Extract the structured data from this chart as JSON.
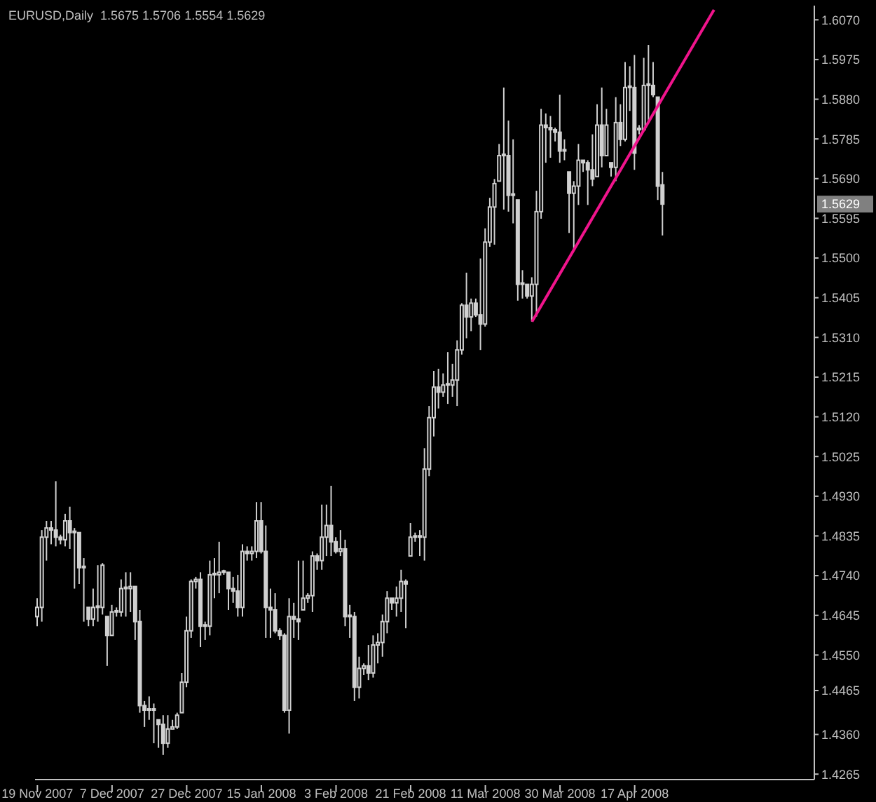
{
  "chart_data": {
    "type": "candlestick",
    "title": "EURUSD,Daily  1.5675 1.5706 1.5554 1.5629",
    "color": "#d0d0d0",
    "categories": [
      "19 Nov 2007",
      null,
      null,
      null,
      null,
      null,
      null,
      null,
      null,
      null,
      null,
      null,
      null,
      null,
      null,
      null,
      "7 Dec 2007",
      null,
      null,
      null,
      null,
      null,
      null,
      null,
      null,
      null,
      null,
      null,
      null,
      null,
      null,
      null,
      "27 Dec 2007",
      null,
      null,
      null,
      null,
      null,
      null,
      null,
      null,
      null,
      null,
      null,
      null,
      null,
      null,
      null,
      "15 Jan 2008",
      null,
      null,
      null,
      null,
      null,
      null,
      null,
      null,
      null,
      null,
      null,
      null,
      null,
      null,
      null,
      "3 Feb 2008",
      null,
      null,
      null,
      null,
      null,
      null,
      null,
      null,
      null,
      null,
      null,
      null,
      null,
      null,
      null,
      "21 Feb 2008",
      null,
      null,
      null,
      null,
      null,
      null,
      null,
      null,
      null,
      null,
      null,
      null,
      null,
      null,
      null,
      "11 Mar 2008",
      null,
      null,
      null,
      null,
      null,
      null,
      null,
      null,
      null,
      null,
      null,
      null,
      null,
      null,
      null,
      "30 Mar 2008",
      null,
      null,
      null,
      null,
      null,
      null,
      null,
      null,
      null,
      null,
      null,
      null,
      null,
      null,
      null,
      "17 Apr 2008",
      null,
      null,
      null,
      null,
      null,
      null,
      null,
      null,
      null,
      null,
      null,
      null,
      null,
      null,
      null,
      null,
      null,
      null,
      null,
      null,
      null,
      null,
      null,
      null,
      null,
      null,
      null,
      null,
      null,
      null,
      null,
      null,
      null,
      null,
      null,
      null,
      null,
      null
    ],
    "ohlc": [
      [
        1.4642,
        1.4686,
        1.4619,
        1.4664
      ],
      [
        1.4664,
        1.4849,
        1.463,
        1.4832
      ],
      [
        1.4832,
        1.4871,
        1.4776,
        1.4854
      ],
      [
        1.4854,
        1.4871,
        1.4815,
        1.4849
      ],
      [
        1.4849,
        1.4966,
        1.481,
        1.4832
      ],
      [
        1.4832,
        1.4838,
        1.4815,
        1.4826
      ],
      [
        1.4826,
        1.4888,
        1.481,
        1.4871
      ],
      [
        1.4871,
        1.4905,
        1.4804,
        1.4843
      ],
      [
        1.4843,
        1.4854,
        1.4709,
        1.4843
      ],
      [
        1.4843,
        1.4843,
        1.472,
        1.4759
      ],
      [
        1.4759,
        1.4782,
        1.463,
        1.4759
      ],
      [
        1.4664,
        1.4664,
        1.4619,
        1.4636
      ],
      [
        1.4636,
        1.4709,
        1.4619,
        1.4664
      ],
      [
        1.4664,
        1.4765,
        1.463,
        1.4664
      ],
      [
        1.4664,
        1.477,
        1.4647,
        1.4765
      ],
      [
        1.4642,
        1.4642,
        1.4524,
        1.4597
      ],
      [
        1.4597,
        1.467,
        1.4597,
        1.4653
      ],
      [
        1.4653,
        1.4664,
        1.4642,
        1.4653
      ],
      [
        1.4653,
        1.4731,
        1.4642,
        1.4709
      ],
      [
        1.4709,
        1.4748,
        1.4642,
        1.4709
      ],
      [
        1.4709,
        1.4748,
        1.4653,
        1.4714
      ],
      [
        1.4714,
        1.4714,
        1.4586,
        1.463
      ],
      [
        1.463,
        1.4658,
        1.4412,
        1.4429
      ],
      [
        1.4429,
        1.444,
        1.4378,
        1.4418
      ],
      [
        1.4418,
        1.4451,
        1.4395,
        1.4418
      ],
      [
        1.4418,
        1.4434,
        1.4339,
        1.4418
      ],
      [
        1.4395,
        1.4395,
        1.4328,
        1.4384
      ],
      [
        1.4384,
        1.4406,
        1.4311,
        1.4339
      ],
      [
        1.4339,
        1.4406,
        1.4328,
        1.4373
      ],
      [
        1.4373,
        1.4395,
        1.4373,
        1.4378
      ],
      [
        1.4378,
        1.4412,
        1.4373,
        1.4406
      ],
      [
        1.4412,
        1.4507,
        1.4412,
        1.4485
      ],
      [
        1.4485,
        1.4642,
        1.4473,
        1.4608
      ],
      [
        1.4608,
        1.4731,
        1.4591,
        1.4726
      ],
      [
        1.4726,
        1.4737,
        1.4709,
        1.4731
      ],
      [
        1.4731,
        1.4748,
        1.4569,
        1.4619
      ],
      [
        1.4619,
        1.463,
        1.4586,
        1.4619
      ],
      [
        1.4619,
        1.4776,
        1.4597,
        1.4742
      ],
      [
        1.4742,
        1.4782,
        1.4686,
        1.4742
      ],
      [
        1.4742,
        1.4821,
        1.4698,
        1.4748
      ],
      [
        1.4748,
        1.4754,
        1.4742,
        1.4748
      ],
      [
        1.4748,
        1.4748,
        1.4658,
        1.4709
      ],
      [
        1.4709,
        1.4737,
        1.4675,
        1.4703
      ],
      [
        1.4703,
        1.4742,
        1.4642,
        1.4664
      ],
      [
        1.4664,
        1.4815,
        1.4642,
        1.4798
      ],
      [
        1.4798,
        1.481,
        1.4776,
        1.4793
      ],
      [
        1.4793,
        1.481,
        1.4776,
        1.4798
      ],
      [
        1.4798,
        1.4916,
        1.4782,
        1.4871
      ],
      [
        1.4871,
        1.4916,
        1.4793,
        1.4798
      ],
      [
        1.4798,
        1.486,
        1.4591,
        1.4664
      ],
      [
        1.4664,
        1.4709,
        1.4591,
        1.4658
      ],
      [
        1.4658,
        1.4698,
        1.4602,
        1.4608
      ],
      [
        1.4608,
        1.4614,
        1.4586,
        1.4597
      ],
      [
        1.4597,
        1.4602,
        1.4412,
        1.4418
      ],
      [
        1.4418,
        1.4686,
        1.4362,
        1.4642
      ],
      [
        1.4642,
        1.4675,
        1.4591,
        1.4636
      ],
      [
        1.4636,
        1.4776,
        1.4586,
        1.463
      ],
      [
        1.4658,
        1.4776,
        1.4658,
        1.4686
      ],
      [
        1.4686,
        1.4698,
        1.4675,
        1.4692
      ],
      [
        1.4692,
        1.4798,
        1.4653,
        1.4787
      ],
      [
        1.4787,
        1.4793,
        1.4754,
        1.4776
      ],
      [
        1.4776,
        1.491,
        1.4754,
        1.4832
      ],
      [
        1.4832,
        1.491,
        1.4787,
        1.486
      ],
      [
        1.486,
        1.4955,
        1.4787,
        1.4821
      ],
      [
        1.4821,
        1.4832,
        1.4793,
        1.4798
      ],
      [
        1.4798,
        1.4849,
        1.4787,
        1.4804
      ],
      [
        1.4804,
        1.4826,
        1.4619,
        1.4642
      ],
      [
        1.4642,
        1.467,
        1.4591,
        1.4642
      ],
      [
        1.4642,
        1.4653,
        1.444,
        1.4473
      ],
      [
        1.4473,
        1.4546,
        1.4446,
        1.4518
      ],
      [
        1.4518,
        1.453,
        1.4502,
        1.4524
      ],
      [
        1.4524,
        1.4574,
        1.449,
        1.4507
      ],
      [
        1.4507,
        1.4597,
        1.4496,
        1.4574
      ],
      [
        1.4574,
        1.4602,
        1.453,
        1.458
      ],
      [
        1.458,
        1.4647,
        1.4546,
        1.463
      ],
      [
        1.463,
        1.4703,
        1.4602,
        1.4686
      ],
      [
        1.4686,
        1.4686,
        1.4658,
        1.4675
      ],
      [
        1.4675,
        1.4714,
        1.4642,
        1.4686
      ],
      [
        1.4686,
        1.4754,
        1.4653,
        1.4726
      ],
      [
        1.4726,
        1.4731,
        1.4614,
        1.472
      ],
      [
        1.4787,
        1.4866,
        1.4787,
        1.4832
      ],
      [
        1.4832,
        1.4843,
        1.4821,
        1.4832
      ],
      [
        1.4832,
        1.4849,
        1.4787,
        1.4832
      ],
      [
        1.4832,
        1.5045,
        1.4776,
        1.4995
      ],
      [
        1.4995,
        1.5146,
        1.4978,
        1.5118
      ],
      [
        1.5118,
        1.523,
        1.5073,
        1.5191
      ],
      [
        1.5191,
        1.5235,
        1.514,
        1.5179
      ],
      [
        1.5179,
        1.5224,
        1.5168,
        1.5196
      ],
      [
        1.5196,
        1.5275,
        1.5151,
        1.5196
      ],
      [
        1.5196,
        1.5247,
        1.5168,
        1.5208
      ],
      [
        1.5208,
        1.5303,
        1.5146,
        1.528
      ],
      [
        1.528,
        1.5392,
        1.5269,
        1.5387
      ],
      [
        1.5387,
        1.5465,
        1.5308,
        1.5359
      ],
      [
        1.5359,
        1.5403,
        1.5325,
        1.5392
      ],
      [
        1.5392,
        1.5403,
        1.5359,
        1.5364
      ],
      [
        1.5364,
        1.5499,
        1.528,
        1.5342
      ],
      [
        1.5342,
        1.5571,
        1.5336,
        1.5538
      ],
      [
        1.5538,
        1.5644,
        1.5527,
        1.5622
      ],
      [
        1.5622,
        1.5689,
        1.5532,
        1.5678
      ],
      [
        1.5684,
        1.5773,
        1.5684,
        1.5745
      ],
      [
        1.5745,
        1.5908,
        1.5616,
        1.5745
      ],
      [
        1.5745,
        1.5829,
        1.5611,
        1.565
      ],
      [
        1.565,
        1.5784,
        1.5583,
        1.565
      ],
      [
        1.5639,
        1.5639,
        1.5398,
        1.5437
      ],
      [
        1.5437,
        1.5471,
        1.5403,
        1.5437
      ],
      [
        1.5437,
        1.5437,
        1.5403,
        1.5409
      ],
      [
        1.5409,
        1.5454,
        1.5348,
        1.5437
      ],
      [
        1.5437,
        1.5661,
        1.536,
        1.5611
      ],
      [
        1.5611,
        1.5857,
        1.5594,
        1.5818
      ],
      [
        1.5818,
        1.5846,
        1.5728,
        1.5812
      ],
      [
        1.5812,
        1.584,
        1.574,
        1.5807
      ],
      [
        1.5807,
        1.5812,
        1.5779,
        1.5801
      ],
      [
        1.5801,
        1.5891,
        1.5728,
        1.5756
      ],
      [
        1.5756,
        1.5784,
        1.5734,
        1.5756
      ],
      [
        1.5706,
        1.5706,
        1.556,
        1.5655
      ],
      [
        1.5655,
        1.5684,
        1.5521,
        1.5672
      ],
      [
        1.5672,
        1.5773,
        1.5627,
        1.5734
      ],
      [
        1.5734,
        1.5734,
        1.5706,
        1.5728
      ],
      [
        1.5728,
        1.5734,
        1.5627,
        1.5711
      ],
      [
        1.5711,
        1.5796,
        1.5672,
        1.5689
      ],
      [
        1.5695,
        1.5868,
        1.5695,
        1.5818
      ],
      [
        1.5818,
        1.5908,
        1.5717,
        1.5745
      ],
      [
        1.5745,
        1.5857,
        1.5745,
        1.5818
      ],
      [
        1.5728,
        1.5728,
        1.5695,
        1.5717
      ],
      [
        1.5717,
        1.5885,
        1.5684,
        1.5824
      ],
      [
        1.5824,
        1.5868,
        1.5768,
        1.5784
      ],
      [
        1.5784,
        1.5969,
        1.5779,
        1.5908
      ],
      [
        1.5908,
        1.5959,
        1.5852,
        1.5908
      ],
      [
        1.5908,
        1.5986,
        1.5711,
        1.5751
      ],
      [
        1.5807,
        1.5818,
        1.5796,
        1.5807
      ],
      [
        1.5807,
        1.5979,
        1.5807,
        1.5913
      ],
      [
        1.5913,
        1.601,
        1.5829,
        1.5913
      ],
      [
        1.5913,
        1.5969,
        1.5885,
        1.5891
      ],
      [
        1.5885,
        1.5885,
        1.5639,
        1.5672
      ],
      [
        1.5675,
        1.5706,
        1.5554,
        1.5629
      ],
      null,
      null,
      null,
      null,
      null,
      null,
      null,
      null,
      null,
      null,
      null,
      null,
      null,
      null,
      null,
      null,
      null,
      null,
      null,
      null,
      null,
      null,
      null,
      null,
      null,
      null,
      null,
      null,
      null,
      null,
      null,
      null
    ],
    "series": [
      {
        "type": "line",
        "color": "#f0148c",
        "values": [
          null,
          null,
          null,
          null,
          null,
          null,
          null,
          null,
          null,
          null,
          null,
          null,
          null,
          null,
          null,
          null,
          null,
          null,
          null,
          null,
          null,
          null,
          null,
          null,
          null,
          null,
          null,
          null,
          null,
          null,
          null,
          null,
          null,
          null,
          null,
          null,
          null,
          null,
          null,
          null,
          null,
          null,
          null,
          null,
          null,
          null,
          null,
          null,
          null,
          null,
          null,
          null,
          null,
          null,
          null,
          null,
          null,
          null,
          null,
          null,
          null,
          null,
          null,
          null,
          null,
          null,
          null,
          null,
          null,
          null,
          null,
          null,
          null,
          null,
          null,
          null,
          null,
          null,
          null,
          null,
          null,
          null,
          null,
          null,
          null,
          null,
          null,
          null,
          null,
          null,
          null,
          null,
          null,
          null,
          null,
          null,
          null,
          null,
          null,
          null,
          null,
          null,
          null,
          null,
          null,
          null,
          1.5348,
          null,
          null,
          null,
          null,
          null,
          null,
          null,
          null,
          null,
          null,
          null,
          null,
          null,
          null,
          null,
          null,
          null,
          null,
          null,
          null,
          null,
          null,
          null,
          null,
          null,
          null,
          null,
          null,
          null,
          null,
          null,
          null,
          null,
          null,
          null,
          null,
          null,
          null,
          1.6094,
          null,
          null,
          null,
          null,
          null,
          null,
          null,
          null,
          null,
          null,
          null,
          null,
          null,
          null,
          null,
          null,
          null,
          null,
          null,
          null,
          null
        ]
      }
    ],
    "ylim": [
      1.4252,
      1.6104
    ],
    "yticks": [
      {
        "value": 1.607,
        "label": "1.6070"
      },
      1.5975,
      {
        "value": 1.588,
        "label": "1.5880"
      },
      1.5785,
      {
        "value": 1.569,
        "label": "1.5690"
      },
      1.5595,
      {
        "value": 1.55,
        "label": "1.5500"
      },
      1.5405,
      {
        "value": 1.531,
        "label": "1.5310"
      },
      1.5215,
      {
        "value": 1.512,
        "label": "1.5120"
      },
      1.5025,
      {
        "value": 1.493,
        "label": "1.4930"
      },
      1.4835,
      {
        "value": 1.474,
        "label": "1.4740"
      },
      1.4645,
      {
        "value": 1.455,
        "label": "1.4550"
      },
      1.4465,
      {
        "value": 1.436,
        "label": "1.4360"
      },
      1.4265
    ],
    "annotations": [
      "1.5629"
    ]
  }
}
